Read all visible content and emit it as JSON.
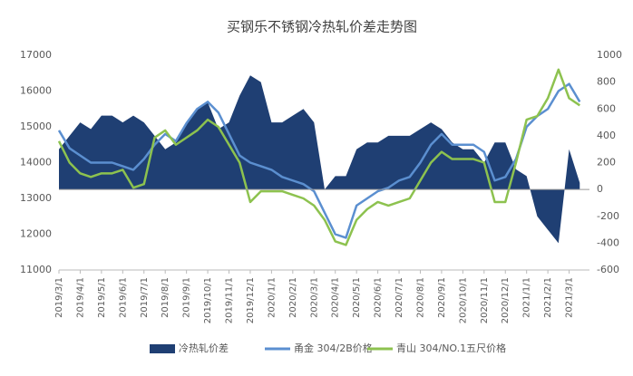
{
  "chart_data": {
    "type": "area-line",
    "title": "买钢乐不锈钢冷热轧价差走势图",
    "categories": [
      "2019/3/1",
      null,
      "2019/4/1",
      null,
      "2019/5/1",
      null,
      "2019/6/1",
      null,
      "2019/7/1",
      null,
      "2019/8/1",
      null,
      "2019/9/1",
      null,
      "2019/10/1",
      null,
      "2019/11/1",
      null,
      "2019/12/1",
      null,
      "2020/1/1",
      null,
      "2020/2/1",
      null,
      "2020/3/1",
      null,
      "2020/4/1",
      null,
      "2020/5/1",
      null,
      "2020/6/1",
      null,
      "2020/7/1",
      null,
      "2020/8/1",
      null,
      "2020/9/1",
      null,
      "2020/10/1",
      null,
      "2020/11/1",
      null,
      "2020/12/1",
      null,
      "2021/1/1",
      null,
      "2021/2/1",
      null,
      "2021/3/1",
      null
    ],
    "series": [
      {
        "name": "冷热轧价差",
        "color": "#1f3f73",
        "kind": "area",
        "axis": "y2",
        "values": [
          300,
          400,
          500,
          450,
          550,
          550,
          500,
          550,
          500,
          400,
          300,
          350,
          500,
          600,
          650,
          450,
          500,
          700,
          850,
          800,
          500,
          500,
          550,
          600,
          500,
          0,
          100,
          100,
          300,
          350,
          350,
          400,
          400,
          400,
          450,
          500,
          450,
          350,
          300,
          300,
          200,
          350,
          350,
          150,
          100,
          -200,
          -300,
          -400,
          300,
          50
        ]
      },
      {
        "name": "甬金 304/2B价格",
        "color": "#5b8fd0",
        "kind": "line",
        "values": [
          14900,
          14400,
          14200,
          14000,
          14000,
          14000,
          13900,
          13800,
          14100,
          14500,
          14800,
          14600,
          15100,
          15500,
          15700,
          15400,
          14800,
          14200,
          14000,
          13900,
          13800,
          13600,
          13500,
          13400,
          13200,
          12600,
          12000,
          11900,
          12800,
          13000,
          13200,
          13300,
          13500,
          13600,
          14000,
          14500,
          14800,
          14500,
          14500,
          14500,
          14300,
          13500,
          13600,
          14100,
          15000,
          15300,
          15500,
          16000,
          16200,
          15700
        ]
      },
      {
        "name": "青山 304/NO.1五尺价格",
        "color": "#8dc24f",
        "kind": "line",
        "values": [
          14600,
          14000,
          13700,
          13600,
          13700,
          13700,
          13800,
          13300,
          13400,
          14700,
          14900,
          14500,
          14700,
          14900,
          15200,
          15000,
          14500,
          14000,
          12900,
          13200,
          13200,
          13200,
          13100,
          13000,
          12800,
          12400,
          11800,
          11700,
          12400,
          12700,
          12900,
          12800,
          12900,
          13000,
          13500,
          14000,
          14300,
          14100,
          14100,
          14100,
          14000,
          12900,
          12900,
          14000,
          15200,
          15300,
          15800,
          16600,
          15800,
          15600
        ]
      }
    ],
    "ylim": [
      11000,
      17000
    ],
    "yticks": [
      11000,
      12000,
      13000,
      14000,
      15000,
      16000,
      17000
    ],
    "y2lim": [
      -600,
      1000
    ],
    "y2ticks": [
      -600,
      -400,
      -200,
      0,
      200,
      400,
      600,
      800,
      1000
    ],
    "grid": false,
    "legend": "bottom"
  }
}
